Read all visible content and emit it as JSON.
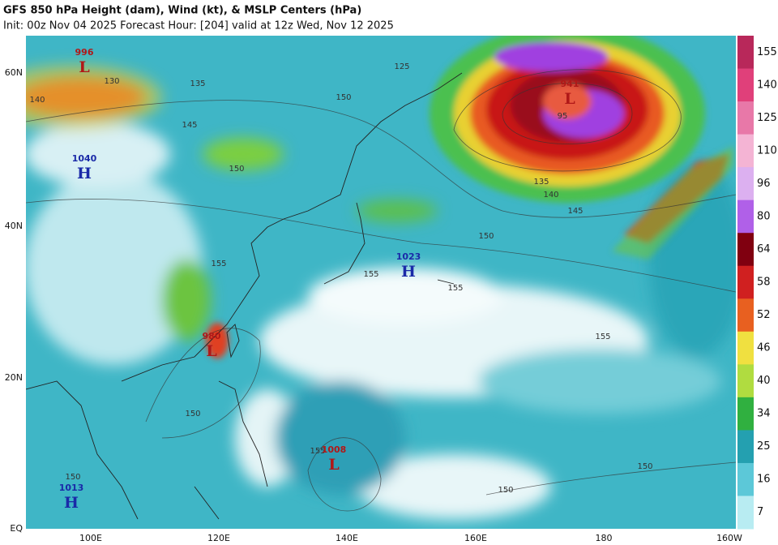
{
  "header": {
    "title": "GFS 850 hPa Height (dam), Wind (kt), & MSLP Centers (hPa)",
    "subtitle": "Init: 00z Nov 04 2025   Forecast Hour: [204]   valid at 12z Wed, Nov 12 2025"
  },
  "map": {
    "lat_labels": [
      "60N",
      "40N",
      "20N",
      "EQ"
    ],
    "lon_labels": [
      "100E",
      "120E",
      "140E",
      "160E",
      "180",
      "160W"
    ],
    "centers": [
      {
        "pressure": "996",
        "letter": "L"
      },
      {
        "pressure": "1040",
        "letter": "H"
      },
      {
        "pressure": "941",
        "letter": "L"
      },
      {
        "pressure": "1023",
        "letter": "H"
      },
      {
        "pressure": "980",
        "letter": "L"
      },
      {
        "pressure": "1008",
        "letter": "L"
      },
      {
        "pressure": "1013",
        "letter": "H"
      }
    ],
    "contour_labels": [
      "130",
      "140",
      "135",
      "145",
      "150",
      "125",
      "150",
      "95",
      "135",
      "140",
      "145",
      "150",
      "155",
      "155",
      "155",
      "155",
      "150",
      "150",
      "150",
      "150",
      "155"
    ]
  },
  "colorbar": {
    "labels": [
      "155",
      "140",
      "125",
      "110",
      "96",
      "80",
      "64",
      "58",
      "52",
      "46",
      "40",
      "34",
      "25",
      "16",
      "7"
    ]
  }
}
